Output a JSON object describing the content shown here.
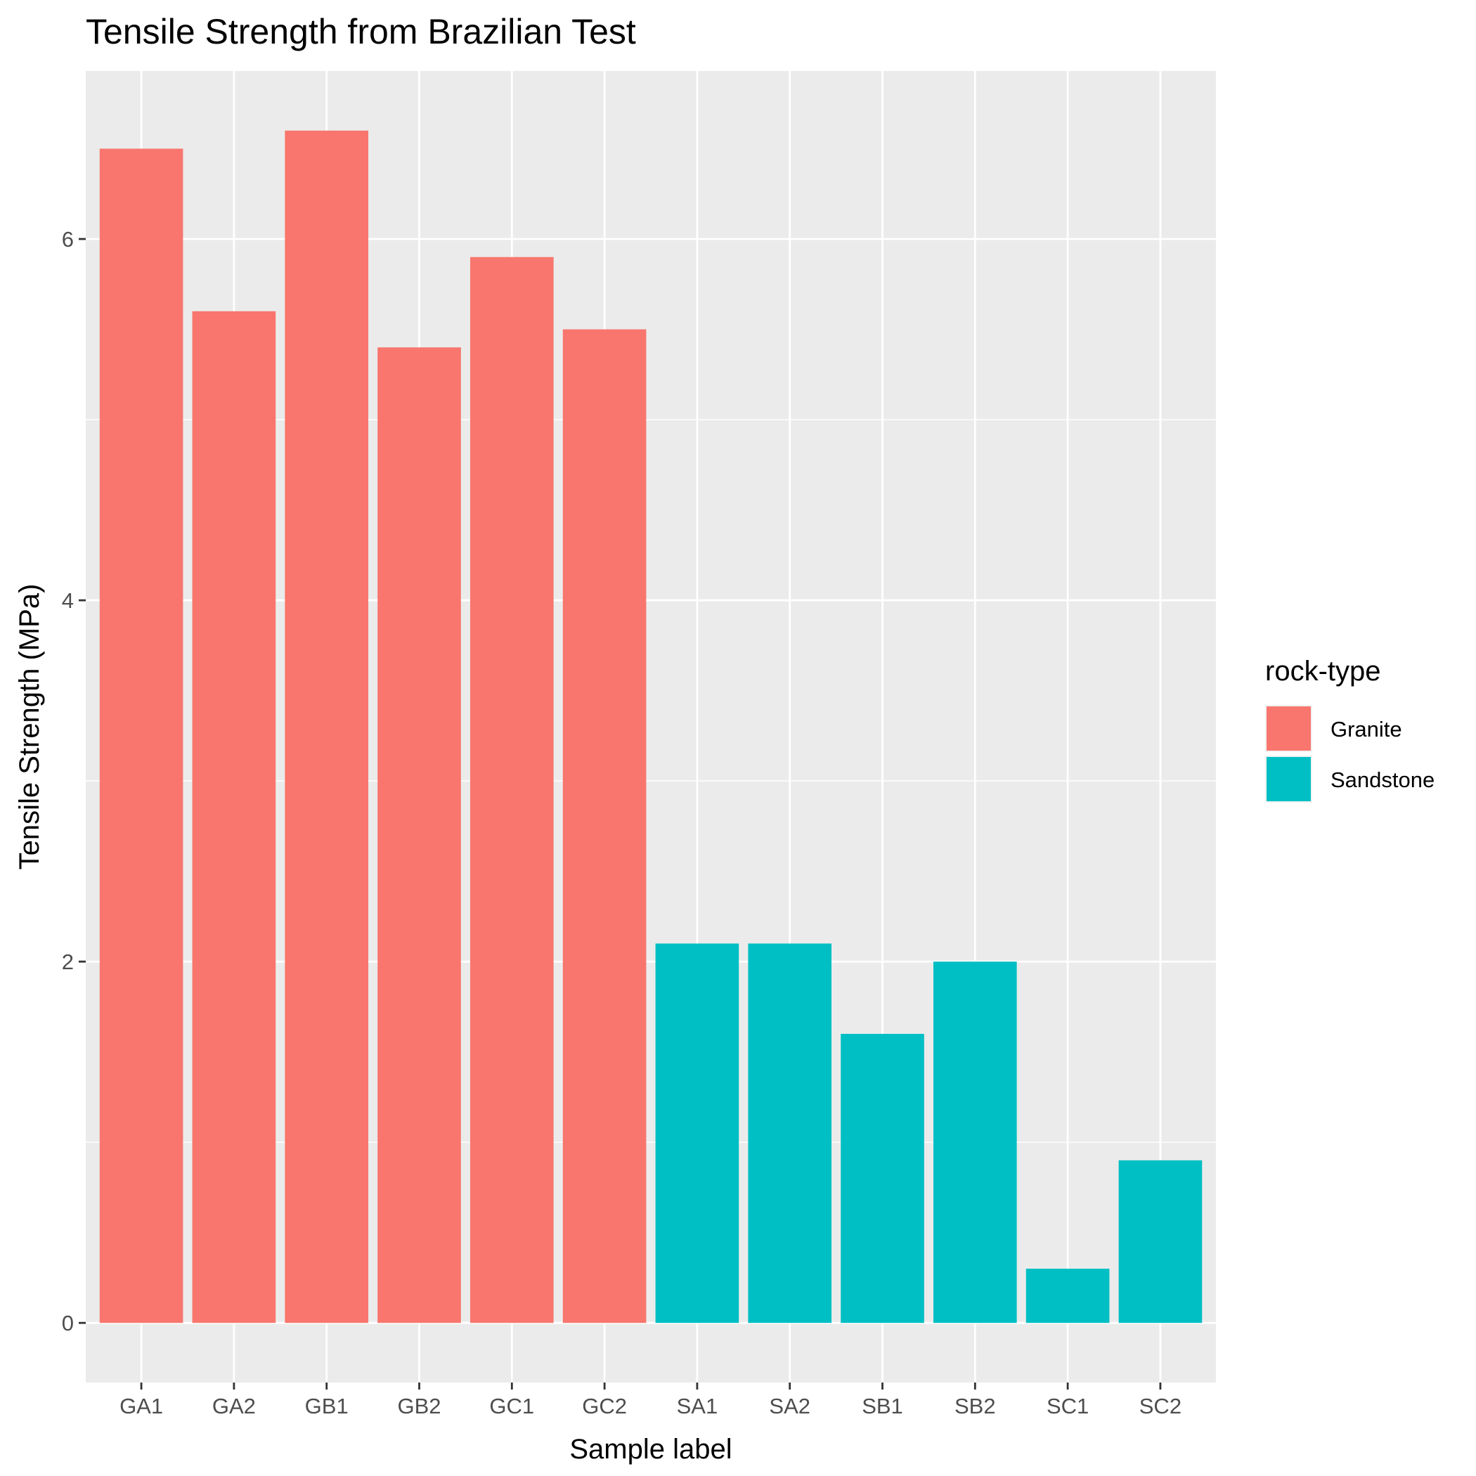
{
  "chart_data": {
    "type": "bar",
    "title": "Tensile Strength from Brazilian Test",
    "xlabel": "Sample label",
    "ylabel": "Tensile Strength (MPa)",
    "categories": [
      "GA1",
      "GA2",
      "GB1",
      "GB2",
      "GC1",
      "GC2",
      "SA1",
      "SA2",
      "SB1",
      "SB2",
      "SC1",
      "SC2"
    ],
    "values": [
      6.5,
      5.6,
      6.6,
      5.4,
      5.9,
      5.5,
      2.1,
      2.1,
      1.6,
      2.0,
      0.3,
      0.9
    ],
    "groups": [
      "Granite",
      "Granite",
      "Granite",
      "Granite",
      "Granite",
      "Granite",
      "Sandstone",
      "Sandstone",
      "Sandstone",
      "Sandstone",
      "Sandstone",
      "Sandstone"
    ],
    "ylim": [
      -0.33,
      6.93
    ],
    "yticks": [
      0,
      2,
      4,
      6
    ],
    "grid": true,
    "legend": {
      "title": "rock-type",
      "position": "right",
      "items": [
        {
          "label": "Granite",
          "color": "#F8766D"
        },
        {
          "label": "Sandstone",
          "color": "#00BFC4"
        }
      ]
    }
  }
}
